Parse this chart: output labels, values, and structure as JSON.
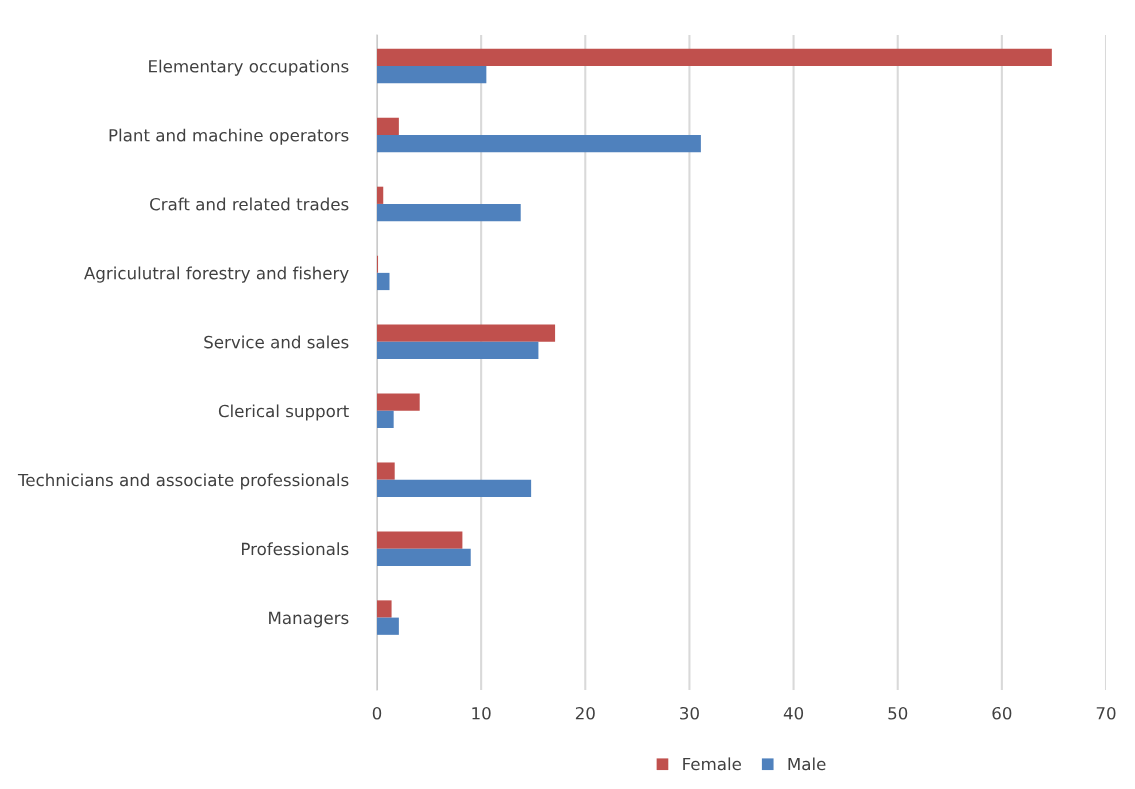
{
  "chart_data": {
    "type": "bar",
    "orientation": "horizontal",
    "categories": [
      "Elementary occupations",
      "Plant and machine operators",
      "Craft and related trades",
      "Agriculutral forestry and fishery",
      "Service and sales",
      "Clerical support",
      "Technicians and associate professionals",
      "Professionals",
      "Managers"
    ],
    "series": [
      {
        "name": "Female",
        "color": "#c0504d",
        "values": [
          64.8,
          2.1,
          0.6,
          0.1,
          17.1,
          4.1,
          1.7,
          8.2,
          1.4
        ]
      },
      {
        "name": "Male",
        "color": "#4f81bd",
        "values": [
          10.5,
          31.1,
          13.8,
          1.2,
          15.5,
          1.6,
          14.8,
          9.0,
          2.1
        ]
      }
    ],
    "xlim": [
      0,
      70
    ],
    "xticks": [
      0,
      10,
      20,
      30,
      40,
      50,
      60,
      70
    ],
    "grid": "x",
    "legend": "bottom"
  }
}
